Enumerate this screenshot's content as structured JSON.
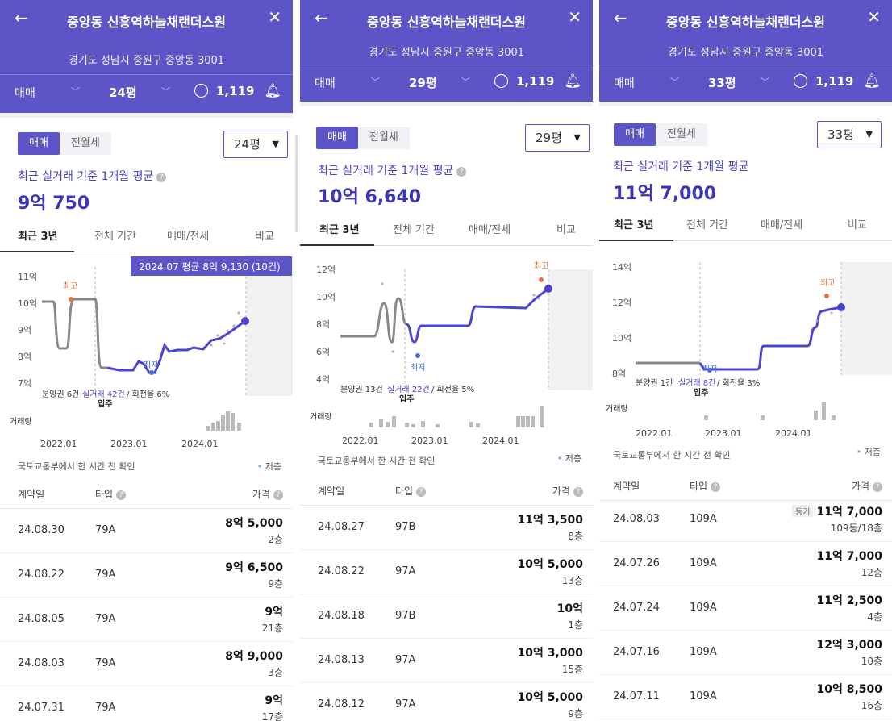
{
  "panels": [
    {
      "header": {
        "title": "중앙동 신흥역하늘채랜더스원",
        "address": "경기도 성남시 중원구 중앙동 3001",
        "deal": "매매",
        "size": "24평",
        "comments": "1,119"
      },
      "seg": {
        "sale": "매매",
        "rent": "전월세"
      },
      "size_dropdown": "24평",
      "caption": "최근 실거래 기준 1개월 평균",
      "avg_price": "9억 750",
      "tabs": [
        "최근 3년",
        "전체 기간",
        "매매/전세",
        "비교"
      ],
      "chart": {
        "y_ticks": [
          "11억",
          "10억",
          "9억",
          "8억",
          "7억"
        ],
        "x_ticks": [
          "2022.01",
          "2023.01",
          "2024.01"
        ],
        "high_label": "최고",
        "low_label": "최저",
        "move_in": "입주",
        "volume_label": "거래량",
        "summary_prefix": "분양권 6건",
        "summary_link": "실거래 42건",
        "summary_suffix": " / 회전율 6%",
        "tooltip": "2024.07 평균 8억 9,130 (10건)"
      },
      "source_note": "국토교통부에서 한 시간 전 확인",
      "low_legend": "저층",
      "table_head": {
        "date": "계약일",
        "type": "타입",
        "price": "가격"
      },
      "rows": [
        {
          "date": "24.08.30",
          "type": "79A",
          "price": "8억 5,000",
          "floor": "2층"
        },
        {
          "date": "24.08.22",
          "type": "79A",
          "price": "9억 6,500",
          "floor": "9층"
        },
        {
          "date": "24.08.05",
          "type": "79A",
          "price": "9억",
          "floor": "21층"
        },
        {
          "date": "24.08.03",
          "type": "79A",
          "price": "8억 9,000",
          "floor": "3층"
        },
        {
          "date": "24.07.31",
          "type": "79A",
          "price": "9억",
          "floor": "17층"
        }
      ]
    },
    {
      "header": {
        "title": "중앙동 신흥역하늘채랜더스원",
        "address": "경기도 성남시 중원구 중앙동 3001",
        "deal": "매매",
        "size": "29평",
        "comments": "1,119"
      },
      "seg": {
        "sale": "매매",
        "rent": "전월세"
      },
      "size_dropdown": "29평",
      "caption": "최근 실거래 기준 1개월 평균",
      "avg_price": "10억 6,640",
      "tabs": [
        "최근 3년",
        "전체 기간",
        "매매/전세",
        "비교"
      ],
      "chart": {
        "y_ticks": [
          "12억",
          "10억",
          "8억",
          "6억",
          "4억"
        ],
        "x_ticks": [
          "2022.01",
          "2023.01",
          "2024.01"
        ],
        "high_label": "최고",
        "low_label": "최저",
        "move_in": "입주",
        "volume_label": "거래량",
        "summary_prefix": "분양권 13건",
        "summary_link": "실거래 22건",
        "summary_suffix": " / 회전율 5%",
        "tooltip": ""
      },
      "source_note": "국토교통부에서 한 시간 전 확인",
      "low_legend": "저층",
      "table_head": {
        "date": "계약일",
        "type": "타입",
        "price": "가격"
      },
      "rows": [
        {
          "date": "24.08.27",
          "type": "97B",
          "price": "11억 3,500",
          "floor": "8층"
        },
        {
          "date": "24.08.22",
          "type": "97A",
          "price": "10억 5,000",
          "floor": "13층"
        },
        {
          "date": "24.08.18",
          "type": "97B",
          "price": "10억",
          "floor": "1층"
        },
        {
          "date": "24.08.13",
          "type": "97A",
          "price": "10억 3,000",
          "floor": "15층"
        },
        {
          "date": "24.08.12",
          "type": "97A",
          "price": "10억 5,000",
          "floor": "9층"
        }
      ]
    },
    {
      "header": {
        "title": "중앙동 신흥역하늘채랜더스원",
        "address": "경기도 성남시 중원구 중앙동 3001",
        "deal": "매매",
        "size": "33평",
        "comments": "1,119"
      },
      "seg": {
        "sale": "매매",
        "rent": "전월세"
      },
      "size_dropdown": "33평",
      "caption": "최근 실거래 기준 1개월 평균",
      "avg_price": "11억 7,000",
      "tabs": [
        "최근 3년",
        "전체 기간",
        "매매/전세",
        "비교"
      ],
      "chart": {
        "y_ticks": [
          "14억",
          "12억",
          "10억",
          "8억"
        ],
        "x_ticks": [
          "2022.01",
          "2023.01",
          "2024.01"
        ],
        "high_label": "최고",
        "low_label": "최저",
        "move_in": "입주",
        "volume_label": "거래량",
        "summary_prefix": "분양권 1건",
        "summary_link": "실거래 8건",
        "summary_suffix": " / 회전율 3%",
        "tooltip": ""
      },
      "source_note": "국토교통부에서 한 시간 전 확인",
      "low_legend": "저층",
      "table_head": {
        "date": "계약일",
        "type": "타입",
        "price": "가격"
      },
      "rows": [
        {
          "date": "24.08.03",
          "type": "109A",
          "price": "11억 7,000",
          "floor": "109동/18층",
          "badge": "등기"
        },
        {
          "date": "24.07.26",
          "type": "109A",
          "price": "11억 7,000",
          "floor": "12층"
        },
        {
          "date": "24.07.24",
          "type": "109A",
          "price": "11억 2,500",
          "floor": "4층"
        },
        {
          "date": "24.07.16",
          "type": "109A",
          "price": "12억 3,000",
          "floor": "10층"
        },
        {
          "date": "24.07.11",
          "type": "109A",
          "price": "10억 8,500",
          "floor": "16층"
        }
      ]
    }
  ],
  "colors": {
    "brand": "#5b55c8",
    "line": "#4a44d0",
    "high": "#e8703a",
    "low": "#4a6ad8"
  }
}
